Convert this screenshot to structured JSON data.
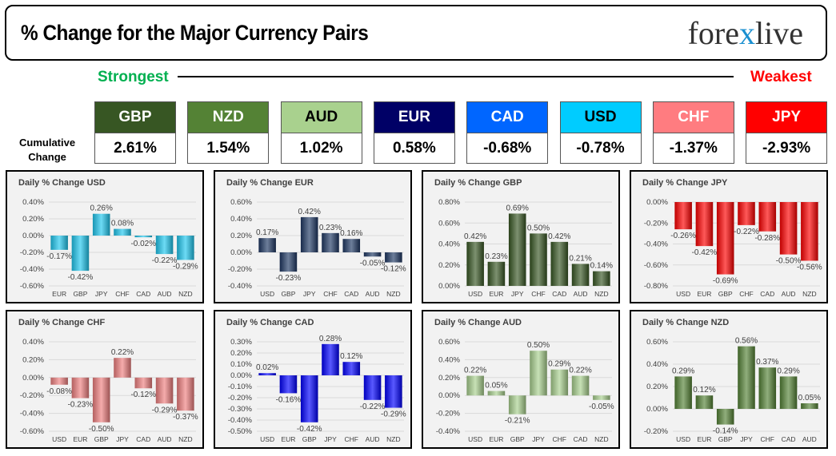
{
  "header": {
    "title": "% Change for the Major Currency Pairs",
    "logo": "forexlive"
  },
  "strongest_label": "Strongest",
  "weakest_label": "Weakest",
  "cumulative_label": [
    "Cumulative",
    "Change"
  ],
  "tiles": [
    {
      "name": "GBP",
      "value": "2.61%",
      "color": "#375623",
      "text": "#ffffff"
    },
    {
      "name": "NZD",
      "value": "1.54%",
      "color": "#548235",
      "text": "#ffffff"
    },
    {
      "name": "AUD",
      "value": "1.02%",
      "color": "#a9d18e",
      "text": "#000000"
    },
    {
      "name": "EUR",
      "value": "0.58%",
      "color": "#000066",
      "text": "#ffffff"
    },
    {
      "name": "CAD",
      "value": "-0.68%",
      "color": "#0066ff",
      "text": "#ffffff"
    },
    {
      "name": "USD",
      "value": "-0.78%",
      "color": "#00ccff",
      "text": "#000000"
    },
    {
      "name": "CHF",
      "value": "-1.37%",
      "color": "#ff7c80",
      "text": "#ffffff"
    },
    {
      "name": "JPY",
      "value": "-2.93%",
      "color": "#ff0000",
      "text": "#ffffff"
    }
  ],
  "chart_data": [
    {
      "type": "bar",
      "title": "Daily % Change USD",
      "categories": [
        "EUR",
        "GBP",
        "JPY",
        "CHF",
        "CAD",
        "AUD",
        "NZD"
      ],
      "values": [
        -0.17,
        -0.42,
        0.26,
        0.08,
        -0.02,
        -0.22,
        -0.29
      ],
      "ylim": [
        -0.6,
        0.4
      ],
      "ystep": 0.2,
      "color": "#1ec8f0",
      "grid": true
    },
    {
      "type": "bar",
      "title": "Daily % Change EUR",
      "categories": [
        "USD",
        "GBP",
        "JPY",
        "CHF",
        "CAD",
        "AUD",
        "NZD"
      ],
      "values": [
        0.17,
        -0.23,
        0.42,
        0.23,
        0.16,
        -0.05,
        -0.12
      ],
      "ylim": [
        -0.4,
        0.6
      ],
      "ystep": 0.2,
      "color": "#1f3864",
      "grid": true
    },
    {
      "type": "bar",
      "title": "Daily % Change GBP",
      "categories": [
        "USD",
        "EUR",
        "JPY",
        "CHF",
        "CAD",
        "AUD",
        "NZD"
      ],
      "values": [
        0.42,
        0.23,
        0.69,
        0.5,
        0.42,
        0.21,
        0.14
      ],
      "ylim": [
        0,
        0.8
      ],
      "ystep": 0.2,
      "color": "#375623",
      "grid": true
    },
    {
      "type": "bar",
      "title": "Daily % Change JPY",
      "categories": [
        "USD",
        "EUR",
        "GBP",
        "CHF",
        "CAD",
        "AUD",
        "NZD"
      ],
      "values": [
        -0.26,
        -0.42,
        -0.69,
        -0.22,
        -0.28,
        -0.5,
        -0.56
      ],
      "ylim": [
        -0.8,
        0
      ],
      "ystep": 0.2,
      "color": "#ff0000",
      "grid": true
    },
    {
      "type": "bar",
      "title": "Daily % Change CHF",
      "categories": [
        "USD",
        "EUR",
        "GBP",
        "JPY",
        "CAD",
        "AUD",
        "NZD"
      ],
      "values": [
        -0.08,
        -0.23,
        -0.5,
        0.22,
        -0.12,
        -0.29,
        -0.37
      ],
      "ylim": [
        -0.6,
        0.4
      ],
      "ystep": 0.2,
      "color": "#f08080",
      "grid": true
    },
    {
      "type": "bar",
      "title": "Daily % Change CAD",
      "categories": [
        "USD",
        "EUR",
        "GBP",
        "JPY",
        "CHF",
        "AUD",
        "NZD"
      ],
      "values": [
        0.02,
        -0.16,
        -0.42,
        0.28,
        0.12,
        -0.22,
        -0.29
      ],
      "ylim": [
        -0.5,
        0.3
      ],
      "ystep": 0.1,
      "color": "#0000ff",
      "grid": true
    },
    {
      "type": "bar",
      "title": "Daily % Change AUD",
      "categories": [
        "USD",
        "EUR",
        "GBP",
        "JPY",
        "CHF",
        "CAD",
        "NZD"
      ],
      "values": [
        0.22,
        0.05,
        -0.21,
        0.5,
        0.29,
        0.22,
        -0.05
      ],
      "ylim": [
        -0.4,
        0.6
      ],
      "ystep": 0.2,
      "color": "#a9d18e",
      "grid": true
    },
    {
      "type": "bar",
      "title": "Daily % Change NZD",
      "categories": [
        "USD",
        "EUR",
        "GBP",
        "JPY",
        "CHF",
        "CAD",
        "AUD"
      ],
      "values": [
        0.29,
        0.12,
        -0.14,
        0.56,
        0.37,
        0.29,
        0.05
      ],
      "ylim": [
        -0.2,
        0.6
      ],
      "ystep": 0.2,
      "color": "#548235",
      "grid": true
    }
  ]
}
